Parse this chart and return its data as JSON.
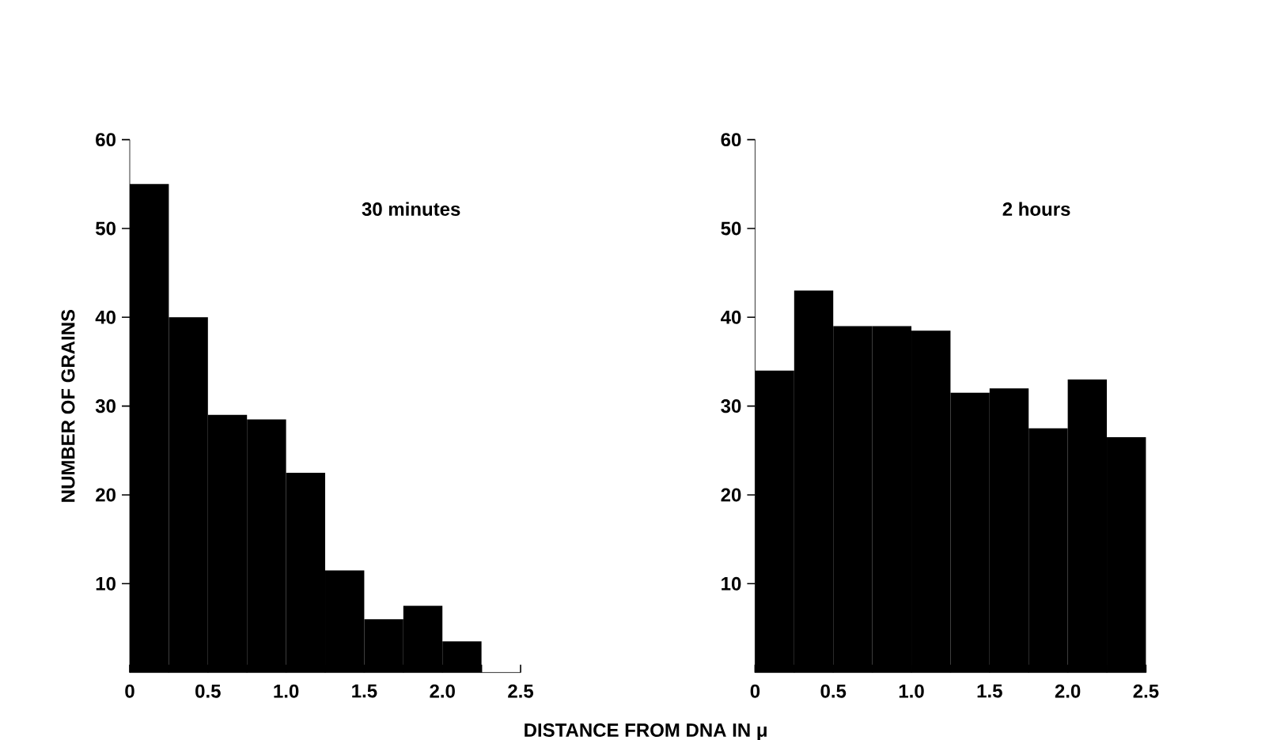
{
  "chart_data": [
    {
      "type": "histogram",
      "ylabel": "NUMBER OF GRAINS",
      "xlabel": "DISTANCE FROM DNA IN μ",
      "annotations": [
        "30 minutes"
      ],
      "bins": [
        0,
        0.25,
        0.5,
        0.75,
        1.0,
        1.25,
        1.5,
        1.75,
        2.0,
        2.25
      ],
      "values": [
        55,
        40,
        29,
        28.5,
        22.5,
        11.5,
        6,
        7.5,
        3.5
      ],
      "color": "#000000",
      "xlim": [
        0,
        2.5
      ],
      "ylim": [
        0,
        60
      ],
      "xticks": [
        0,
        {
          "value": 0.25,
          "label": null
        },
        0.5,
        {
          "value": 0.75,
          "label": null
        },
        {
          "value": 1,
          "label": "1.0"
        },
        {
          "value": 1.25,
          "label": null
        },
        1.5,
        {
          "value": 1.75,
          "label": null
        },
        {
          "value": 2,
          "label": "2.0"
        },
        {
          "value": 2.25,
          "label": null
        },
        2.5
      ],
      "yticks": [
        10,
        20,
        30,
        40,
        50,
        60
      ]
    },
    {
      "type": "histogram",
      "annotations": [
        "2 hours"
      ],
      "bins": [
        0,
        0.25,
        0.5,
        0.75,
        1.0,
        1.25,
        1.5,
        1.75,
        2.0,
        2.25,
        2.5
      ],
      "values": [
        34,
        43,
        39,
        39,
        38.5,
        31.5,
        32,
        27.5,
        33,
        26.5
      ],
      "color": "#000000",
      "xlim": [
        0,
        2.5
      ],
      "ylim": [
        0,
        60
      ],
      "xticks": [
        0,
        {
          "value": 0.25,
          "label": null
        },
        0.5,
        {
          "value": 0.75,
          "label": null
        },
        {
          "value": 1,
          "label": "1.0"
        },
        {
          "value": 1.25,
          "label": null
        },
        1.5,
        {
          "value": 1.75,
          "label": null
        },
        {
          "value": 2,
          "label": "2.0"
        },
        {
          "value": 2.25,
          "label": null
        },
        2.5
      ],
      "yticks": [
        10,
        20,
        30,
        40,
        50,
        60
      ]
    }
  ]
}
